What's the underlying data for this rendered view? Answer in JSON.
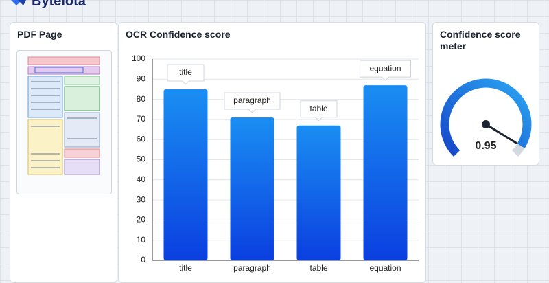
{
  "brand": "Bytelota",
  "pdf_panel": {
    "title": "PDF Page"
  },
  "chart_data": {
    "type": "bar",
    "title": "OCR Confidence score",
    "categories": [
      "title",
      "paragraph",
      "table",
      "equation"
    ],
    "values": [
      85,
      71,
      67,
      87
    ],
    "ylim": [
      0,
      100
    ],
    "yticks": [
      0,
      10,
      20,
      30,
      40,
      50,
      60,
      70,
      80,
      90,
      100
    ],
    "grid": true
  },
  "gauge": {
    "title": "Confidence score meter",
    "value": 0.95
  }
}
